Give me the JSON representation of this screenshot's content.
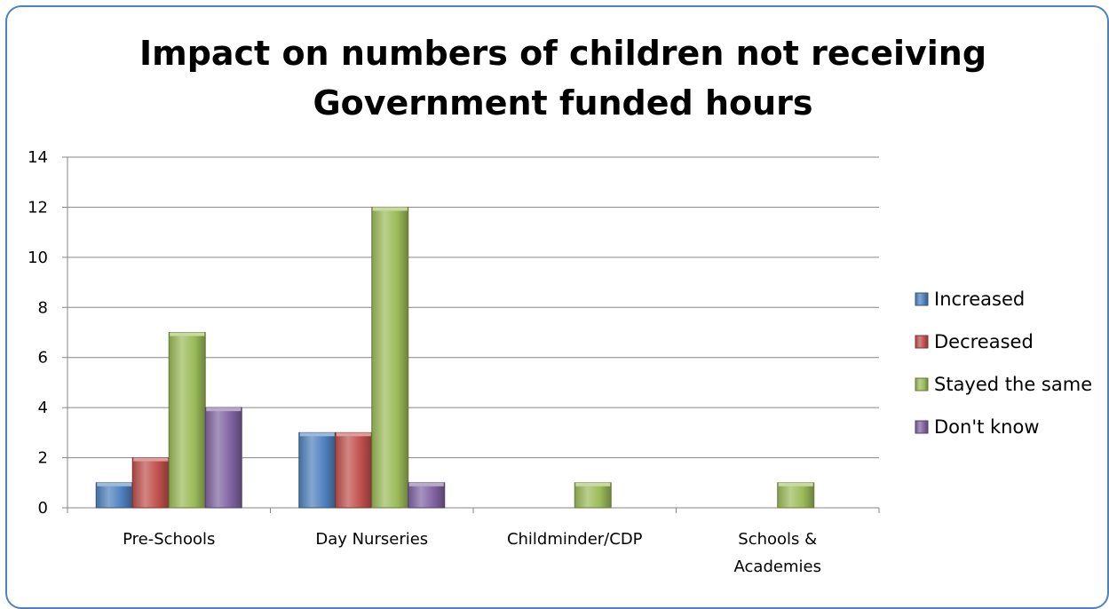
{
  "chart_data": {
    "type": "bar",
    "title": [
      "Impact on numbers of children not receiving",
      "Government funded hours"
    ],
    "xlabel": "",
    "ylabel": "",
    "categories": [
      [
        "Pre-Schools"
      ],
      [
        "Day Nurseries"
      ],
      [
        "Childminder/CDP"
      ],
      [
        "Schools &",
        "Academies"
      ]
    ],
    "series": [
      {
        "name": "Increased",
        "color": "#4f81bd",
        "values": [
          1,
          3,
          0,
          0
        ]
      },
      {
        "name": "Decreased",
        "color": "#c0504d",
        "values": [
          2,
          3,
          0,
          0
        ]
      },
      {
        "name": "Stayed the same",
        "color": "#9bbb59",
        "values": [
          7,
          12,
          1,
          1
        ]
      },
      {
        "name": "Don't know",
        "color": "#8064a2",
        "values": [
          4,
          1,
          0,
          0
        ]
      }
    ],
    "ylim": [
      0,
      14
    ],
    "yticks": [
      0,
      2,
      4,
      6,
      8,
      10,
      12,
      14
    ],
    "grid": true,
    "legend_position": "right"
  }
}
